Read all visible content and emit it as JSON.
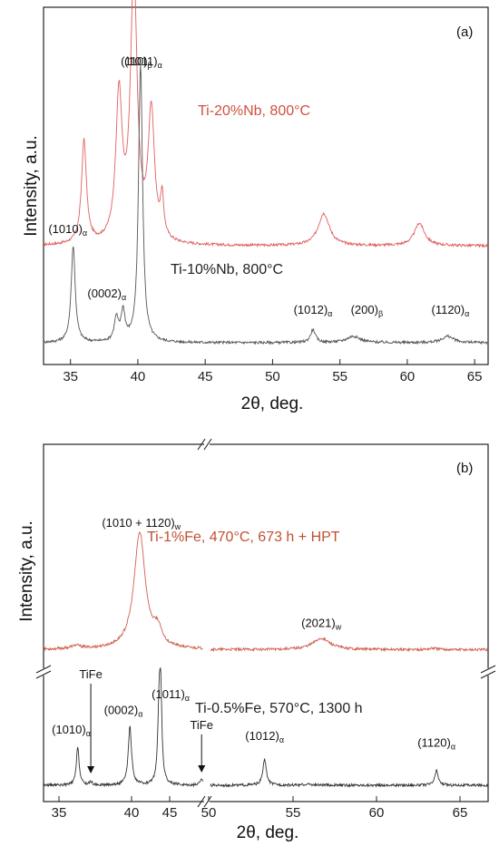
{
  "chart_data": [
    {
      "type": "line",
      "panel_label": "(a)",
      "xlabel": "2θ, deg.",
      "ylabel": "Intensity, a.u.",
      "xlim": [
        33,
        66
      ],
      "x_ticks": [
        "35",
        "40",
        "45",
        "50",
        "55",
        "60",
        "65"
      ],
      "series": [
        {
          "name": "Ti-20%Nb, 800°C",
          "color": "#e06060",
          "baseline": 0.3,
          "peaks": [
            {
              "x": 36.0,
              "h": 0.32,
              "w": 0.22
            },
            {
              "x": 38.6,
              "h": 0.45,
              "w": 0.28
            },
            {
              "x": 39.7,
              "h": 0.82,
              "w": 0.3
            },
            {
              "x": 41.0,
              "h": 0.4,
              "w": 0.28
            },
            {
              "x": 41.8,
              "h": 0.12,
              "w": 0.15
            },
            {
              "x": 53.8,
              "h": 0.1,
              "w": 0.5
            },
            {
              "x": 60.9,
              "h": 0.07,
              "w": 0.45
            }
          ]
        },
        {
          "name": "Ti-10%Nb, 800°C",
          "color": "#555555",
          "baseline": 0,
          "peaks": [
            {
              "x": 35.2,
              "h": 0.3,
              "w": 0.18
            },
            {
              "x": 38.4,
              "h": 0.07,
              "w": 0.18
            },
            {
              "x": 38.9,
              "h": 0.09,
              "w": 0.18
            },
            {
              "x": 40.2,
              "h": 0.86,
              "w": 0.18
            },
            {
              "x": 53.0,
              "h": 0.04,
              "w": 0.22
            },
            {
              "x": 56.0,
              "h": 0.02,
              "w": 0.6
            },
            {
              "x": 63.0,
              "h": 0.02,
              "w": 0.5
            }
          ]
        }
      ],
      "annotations": [
        {
          "base": "(110)",
          "sub": "β",
          "x": 39.9,
          "y": 0.86
        },
        {
          "base": "(1011)",
          "sub": "α",
          "x": 40.4,
          "y": 0.86
        },
        {
          "base": "(1010)",
          "sub": "α",
          "x": 34.8,
          "y": 0.34
        },
        {
          "base": "(0002)",
          "sub": "α",
          "x": 37.7,
          "y": 0.14
        },
        {
          "base": "(1012)",
          "sub": "α",
          "x": 53.0,
          "y": 0.09
        },
        {
          "base": "(200)",
          "sub": "β",
          "x": 57.0,
          "y": 0.09
        },
        {
          "base": "(1120)",
          "sub": "α",
          "x": 63.2,
          "y": 0.09
        }
      ]
    },
    {
      "type": "line",
      "panel_label": "(b)",
      "xlabel": "2θ, deg.",
      "ylabel": "Intensity, a.u.",
      "broken_axis": {
        "left_range": [
          33,
          42.8
        ],
        "right_range": [
          49.8,
          66
        ]
      },
      "x_ticks": [
        "35",
        "40",
        "45",
        "50",
        "55",
        "60",
        "65"
      ],
      "series": [
        {
          "name": "Ti-1%Fe, 470°C, 673 h + HPT",
          "color": "#d06050",
          "baseline": 0.42,
          "peaks": [
            {
              "x": 35.0,
              "h": 0.01,
              "w": 0.4
            },
            {
              "x": 38.9,
              "h": 0.36,
              "w": 0.42
            },
            {
              "x": 40.0,
              "h": 0.05,
              "w": 0.3
            },
            {
              "x": 56.3,
              "h": 0.035,
              "w": 0.6
            },
            {
              "x": 62.8,
              "h": 0.004,
              "w": 0.3
            }
          ]
        },
        {
          "name": "Ti-0.5%Fe, 570°C,  1300 h",
          "color": "#333333",
          "baseline": 0,
          "peaks": [
            {
              "x": 35.1,
              "h": 0.12,
              "w": 0.1
            },
            {
              "x": 35.9,
              "h": 0.01,
              "w": 0.1
            },
            {
              "x": 38.3,
              "h": 0.18,
              "w": 0.12
            },
            {
              "x": 40.1,
              "h": 0.25,
              "w": 0.1
            },
            {
              "x": 40.2,
              "h": 0.22,
              "w": 0.08
            },
            {
              "x": 42.7,
              "h": 0.02,
              "w": 0.1
            },
            {
              "x": 53.0,
              "h": 0.08,
              "w": 0.12
            },
            {
              "x": 55.5,
              "h": 0.003,
              "w": 0.3
            },
            {
              "x": 63.0,
              "h": 0.045,
              "w": 0.12
            }
          ]
        }
      ],
      "annotations": [
        {
          "base": "(1010 + 1120)",
          "sub": "w",
          "x": 39.0,
          "y": 0.8
        },
        {
          "base": "(2021)",
          "sub": "w",
          "x": 56.3,
          "y": 0.49
        },
        {
          "base": "(1011)",
          "sub": "α",
          "x": 40.8,
          "y": 0.27
        },
        {
          "base": "(1010)",
          "sub": "α",
          "x": 34.7,
          "y": 0.16
        },
        {
          "base": "(0002)",
          "sub": "α",
          "x": 37.9,
          "y": 0.22
        },
        {
          "base": "(1012)",
          "sub": "α",
          "x": 53.0,
          "y": 0.14
        },
        {
          "base": "(1120)",
          "sub": "α",
          "x": 63.0,
          "y": 0.12
        }
      ],
      "arrow_labels": [
        {
          "text": "TiFe",
          "x": 35.9
        },
        {
          "text": "TiFe",
          "x": 42.7
        }
      ]
    }
  ]
}
